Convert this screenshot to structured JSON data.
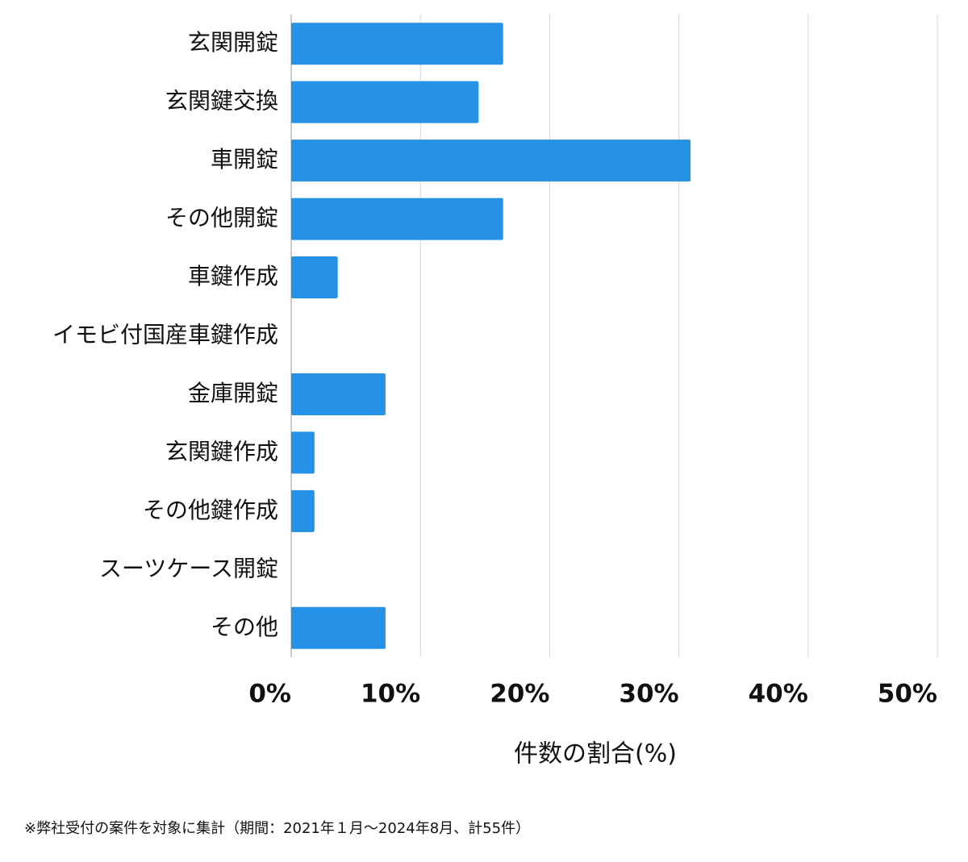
{
  "chart_data": {
    "type": "bar",
    "orientation": "horizontal",
    "categories": [
      "玄関開錠",
      "玄関鍵交換",
      "車開錠",
      "その他開錠",
      "車鍵作成",
      "イモビ付国産車鍵作成",
      "金庫開錠",
      "玄関鍵作成",
      "その他鍵作成",
      "スーツケース開錠",
      "その他"
    ],
    "values": [
      16.4,
      14.5,
      30.9,
      16.4,
      3.6,
      0,
      7.3,
      1.8,
      1.8,
      0,
      7.3
    ],
    "color": "#2592e6",
    "xlim": [
      0,
      50
    ],
    "xticks": [
      {
        "value": 0,
        "label": "0%"
      },
      {
        "value": 10,
        "label": "10%"
      },
      {
        "value": 20,
        "label": "20%"
      },
      {
        "value": 30,
        "label": "30%"
      },
      {
        "value": 40,
        "label": "40%"
      },
      {
        "value": 50,
        "label": "50%"
      }
    ],
    "xlabel": "件数の割合(%)",
    "grid": true,
    "footnote": "※弊社受付の案件を対象に集計（期間：2021年１月〜2024年8月、計55件）"
  }
}
